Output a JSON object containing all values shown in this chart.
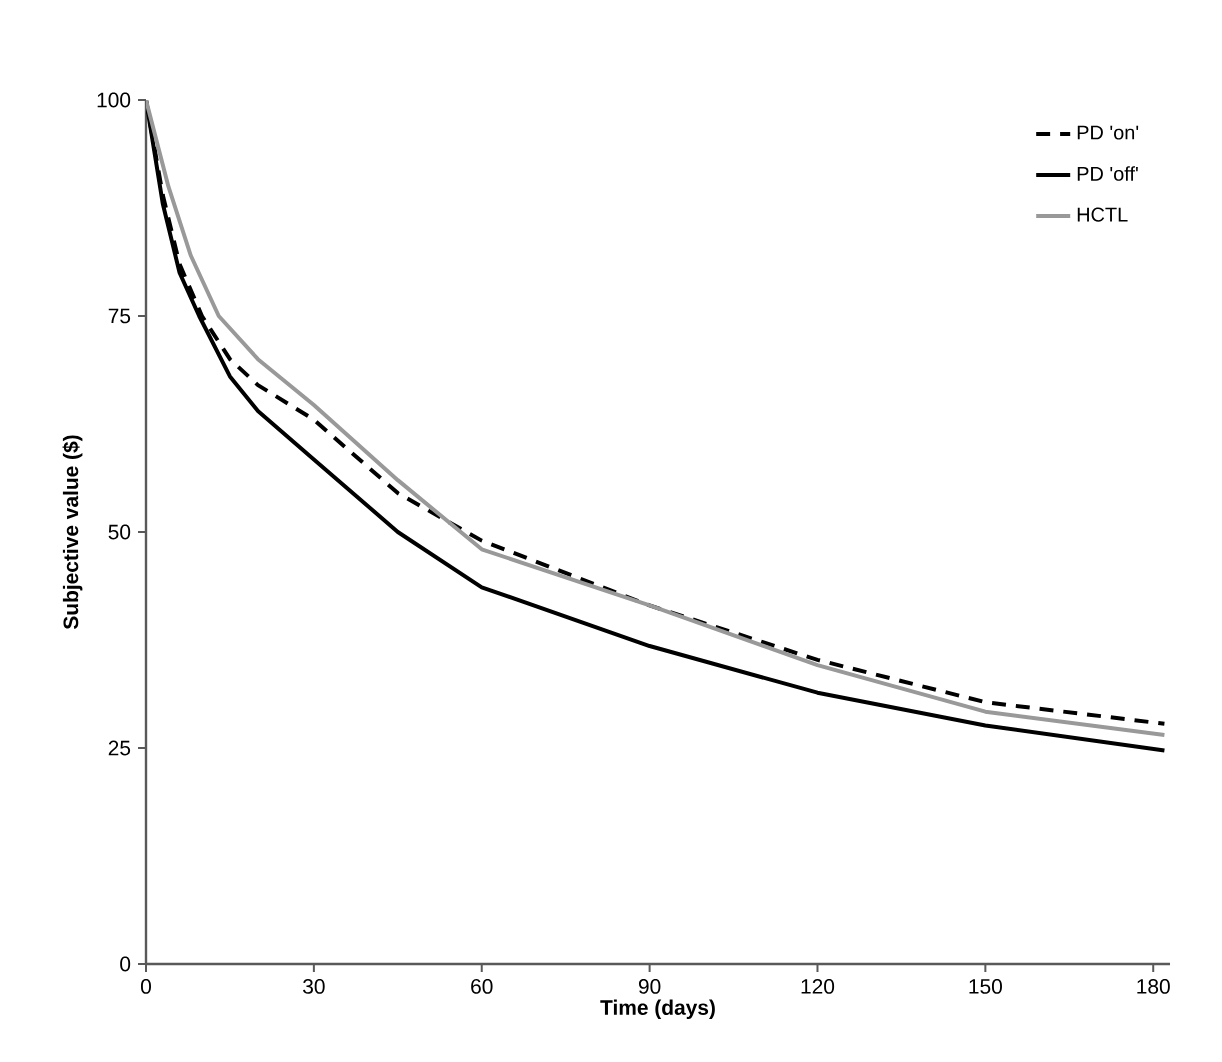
{
  "chart_data": {
    "type": "line",
    "xlabel": "Time (days)",
    "ylabel": "Subjective value ($)",
    "xlim": [
      0,
      183
    ],
    "ylim": [
      0,
      100
    ],
    "xticks": [
      0,
      30,
      60,
      90,
      120,
      150,
      180
    ],
    "yticks": [
      0,
      25,
      50,
      75,
      100
    ],
    "grid": false,
    "legend": "top right",
    "marker": "none",
    "series": [
      {
        "name": "PD 'on'",
        "color": "#000000",
        "line_style": "dashed",
        "x": [
          0,
          3,
          6,
          10,
          15,
          20,
          30,
          45,
          60,
          90,
          120,
          150,
          182
        ],
        "values": [
          100,
          89,
          81,
          75,
          70,
          67,
          63,
          54.5,
          49,
          41.5,
          35.2,
          30.3,
          27.8
        ]
      },
      {
        "name": "PD 'off'",
        "color": "#000000",
        "line_style": "solid",
        "x": [
          0,
          3,
          6,
          9.5,
          15,
          20,
          30,
          45,
          60,
          90,
          120,
          150,
          182
        ],
        "values": [
          100,
          88,
          80,
          75,
          68,
          64,
          58.4,
          50,
          43.6,
          36.8,
          31.4,
          27.6,
          24.7
        ]
      },
      {
        "name": "HCTL",
        "color": "#999999",
        "line_style": "solid",
        "x": [
          0,
          4,
          8,
          13,
          20,
          30,
          45,
          60,
          90,
          120,
          150,
          182
        ],
        "values": [
          100,
          90,
          82,
          75,
          70,
          64.7,
          56,
          48,
          41.5,
          34.6,
          29.2,
          26.5
        ]
      }
    ]
  }
}
